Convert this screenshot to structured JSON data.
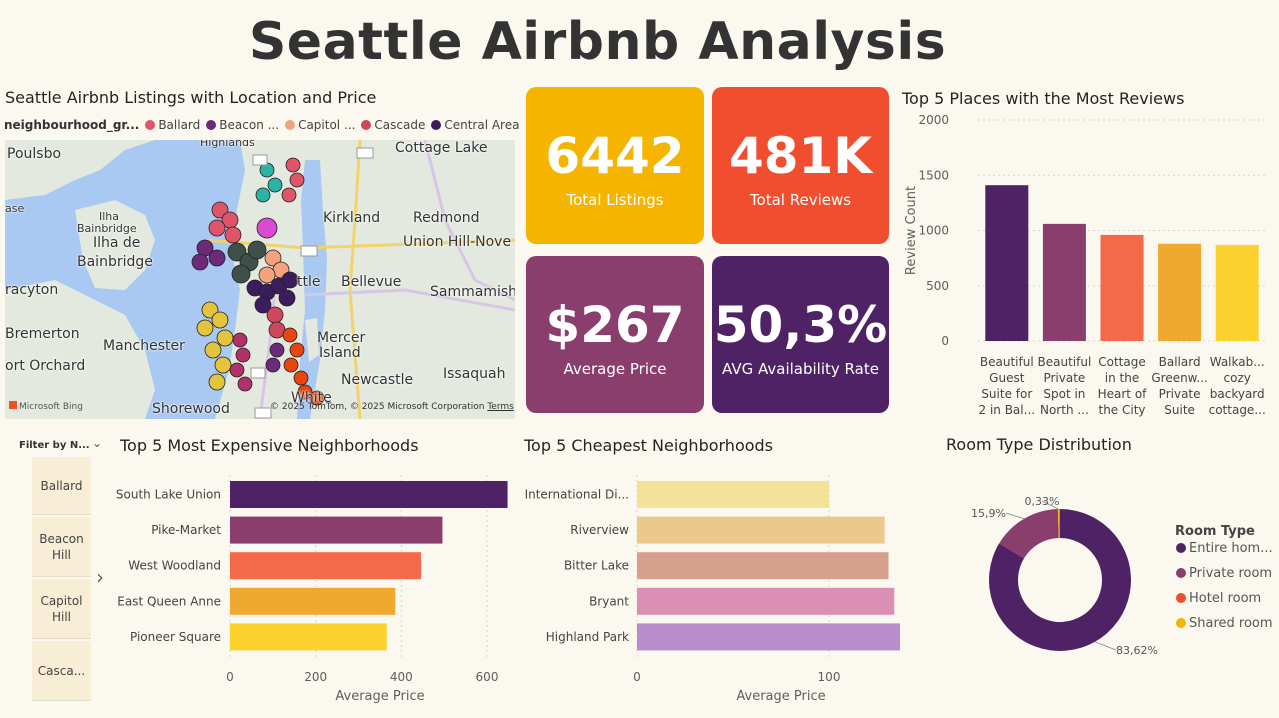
{
  "title": "Seattle Airbnb Analysis",
  "map": {
    "title": "Seattle Airbnb Listings with Location and Price",
    "legend_title": "neighbourhood_gr...",
    "legend": [
      {
        "label": "Ballard",
        "color": "#e0546a"
      },
      {
        "label": "Beacon ...",
        "color": "#6b2a7a"
      },
      {
        "label": "Capitol ...",
        "color": "#f4a37e"
      },
      {
        "label": "Cascade",
        "color": "#d0475c"
      },
      {
        "label": "Central Area",
        "color": "#3b1c5c"
      }
    ],
    "places": [
      "Poulsbo",
      "Highlands",
      "Cottage Lake",
      "ase",
      "Ilha",
      "Bainbridge",
      "Kirkland",
      "Redmond",
      "Ilha de",
      "Bainbridge",
      "Union Hill-Nove",
      "racyton",
      "ttle",
      "Bellevue",
      "Sammamish",
      "Bremerton",
      "Manchester",
      "Mercer",
      "Island",
      "ort Orchard",
      "Issaquah",
      "Newcastle",
      "Shorewood",
      "White"
    ],
    "credit": "© 2025 TomTom, © 2025 Microsoft Corporation",
    "terms": "Terms",
    "bing": "Microsoft Bing"
  },
  "cards": [
    {
      "value": "6442",
      "label": "Total Listings",
      "color": "#f4b400"
    },
    {
      "value": "481K",
      "label": "Total Reviews",
      "color": "#f04e2e"
    },
    {
      "value": "$267",
      "label": "Average Price",
      "color": "#8a3e6e"
    },
    {
      "value": "50,3%",
      "label": "AVG Availability Rate",
      "color": "#4f2266"
    }
  ],
  "slicer": {
    "header": "Filter by N...",
    "items": [
      "Ballard",
      "Beacon Hill",
      "Capitol Hill",
      "Casca..."
    ]
  },
  "chart_data": [
    {
      "type": "bar",
      "title": "Top 5 Places with the Most Reviews",
      "ylabel": "Review Count",
      "xlabel": "",
      "categories": [
        "Beautiful Guest Suite for 2 in Bal...",
        "Beautiful Private Spot in North ...",
        "Cottage in the Heart of the City",
        "Ballard Greenw... Private Suite",
        "Walkab... cozy backyard cottage..."
      ],
      "category_lines": [
        [
          "Beautiful",
          "Guest",
          "Suite for",
          "2 in Bal..."
        ],
        [
          "Beautiful",
          "Private",
          "Spot in",
          "North ..."
        ],
        [
          "Cottage",
          "in the",
          "Heart of",
          "the City"
        ],
        [
          "Ballard",
          "Greenw...",
          "Private",
          "Suite"
        ],
        [
          "Walkab...",
          "cozy",
          "backyard",
          "cottage..."
        ]
      ],
      "values": [
        1410,
        1060,
        960,
        880,
        870
      ],
      "colors": [
        "#4f2266",
        "#8a3e6e",
        "#f4694a",
        "#f0a92f",
        "#fbd22e"
      ],
      "ylim": [
        0,
        2000
      ],
      "yticks": [
        "0",
        "500",
        "1000",
        "1500",
        "2000"
      ],
      "grid": true
    },
    {
      "type": "bar",
      "orientation": "horizontal",
      "title": "Top 5 Most Expensive Neighborhoods",
      "xlabel": "Average Price",
      "categories": [
        "South Lake Union",
        "Pike-Market",
        "West Woodland",
        "East Queen Anne",
        "Pioneer Square"
      ],
      "values": [
        648,
        496,
        446,
        386,
        366
      ],
      "colors": [
        "#4f2266",
        "#8a3e6e",
        "#f4694a",
        "#f0a92f",
        "#fbd22e"
      ],
      "xlim": [
        0,
        700
      ],
      "xticks": [
        "0",
        "200",
        "400",
        "600"
      ],
      "grid": true
    },
    {
      "type": "bar",
      "orientation": "horizontal",
      "title": "Top 5 Cheapest Neighborhoods",
      "xlabel": "Average Price",
      "categories": [
        "International Di...",
        "Riverview",
        "Bitter Lake",
        "Bryant",
        "Highland Park"
      ],
      "values": [
        100,
        129,
        131,
        134,
        137
      ],
      "colors": [
        "#f2e29a",
        "#ebc98c",
        "#d6a08e",
        "#dc8fb4",
        "#b98ccb"
      ],
      "xlim": [
        0,
        150
      ],
      "xticks": [
        "0",
        "100"
      ],
      "grid": true
    },
    {
      "type": "pie",
      "title": "Room Type Distribution",
      "legend_title": "Room Type",
      "legend_position": "right",
      "labels": [
        "Entire hom...",
        "Private room",
        "Hotel room",
        "Shared room"
      ],
      "values": [
        83.62,
        15.9,
        0.15,
        0.33
      ],
      "data_labels": [
        "83,62%",
        "15,9%",
        "",
        "0,33%"
      ],
      "colors": [
        "#4f2266",
        "#8a3e6e",
        "#f04e2e",
        "#f4b400"
      ]
    }
  ]
}
